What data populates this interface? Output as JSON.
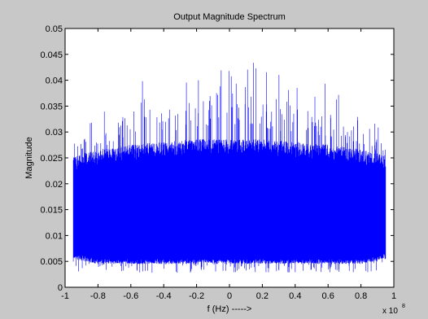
{
  "colors": {
    "figure_bg": "#c8c8c8",
    "axes_bg": "#ffffff",
    "series": "#0000ff",
    "axis": "#000000"
  },
  "chart_data": {
    "type": "line",
    "title": "Output Magnitude Spectrum",
    "xlabel": "f   (Hz) ----->",
    "ylabel": "Magnitude",
    "x_exponent_base": "x 10",
    "x_exponent_power": "8",
    "xlim": [
      -1,
      1
    ],
    "ylim": [
      0,
      0.05
    ],
    "grid": false,
    "x_ticks": [
      -1,
      -0.8,
      -0.6,
      -0.4,
      -0.2,
      0,
      0.2,
      0.4,
      0.6,
      0.8,
      1
    ],
    "x_tick_labels": [
      "-1",
      "-0.8",
      "-0.6",
      "-0.4",
      "-0.2",
      "0",
      "0.2",
      "0.4",
      "0.6",
      "0.8",
      "1"
    ],
    "y_ticks": [
      0,
      0.005,
      0.01,
      0.015,
      0.02,
      0.025,
      0.03,
      0.035,
      0.04,
      0.045,
      0.05
    ],
    "y_tick_labels": [
      "0",
      "0.005",
      "0.01",
      "0.015",
      "0.02",
      "0.025",
      "0.03",
      "0.035",
      "0.04",
      "0.045",
      "0.05"
    ],
    "series": [
      {
        "color": "#0000ff",
        "x_range": [
          -0.95,
          0.95
        ],
        "envelope": {
          "x": [
            -0.95,
            -0.8,
            -0.6,
            -0.4,
            -0.2,
            0.0,
            0.2,
            0.4,
            0.6,
            0.8,
            0.95
          ],
          "band_top": [
            0.0235,
            0.0245,
            0.0255,
            0.026,
            0.0265,
            0.0265,
            0.0265,
            0.026,
            0.0255,
            0.0245,
            0.0235
          ],
          "band_bottom": [
            0.006,
            0.005,
            0.005,
            0.005,
            0.005,
            0.005,
            0.005,
            0.005,
            0.005,
            0.005,
            0.006
          ],
          "spike_top": [
            0.031,
            0.033,
            0.04,
            0.04,
            0.043,
            0.046,
            0.043,
            0.04,
            0.04,
            0.033,
            0.031
          ],
          "spike_bottom": [
            0.0028,
            0.0028,
            0.0028,
            0.0028,
            0.0028,
            0.0028,
            0.0028,
            0.0028,
            0.0028,
            0.0028,
            0.0028
          ]
        }
      }
    ]
  }
}
